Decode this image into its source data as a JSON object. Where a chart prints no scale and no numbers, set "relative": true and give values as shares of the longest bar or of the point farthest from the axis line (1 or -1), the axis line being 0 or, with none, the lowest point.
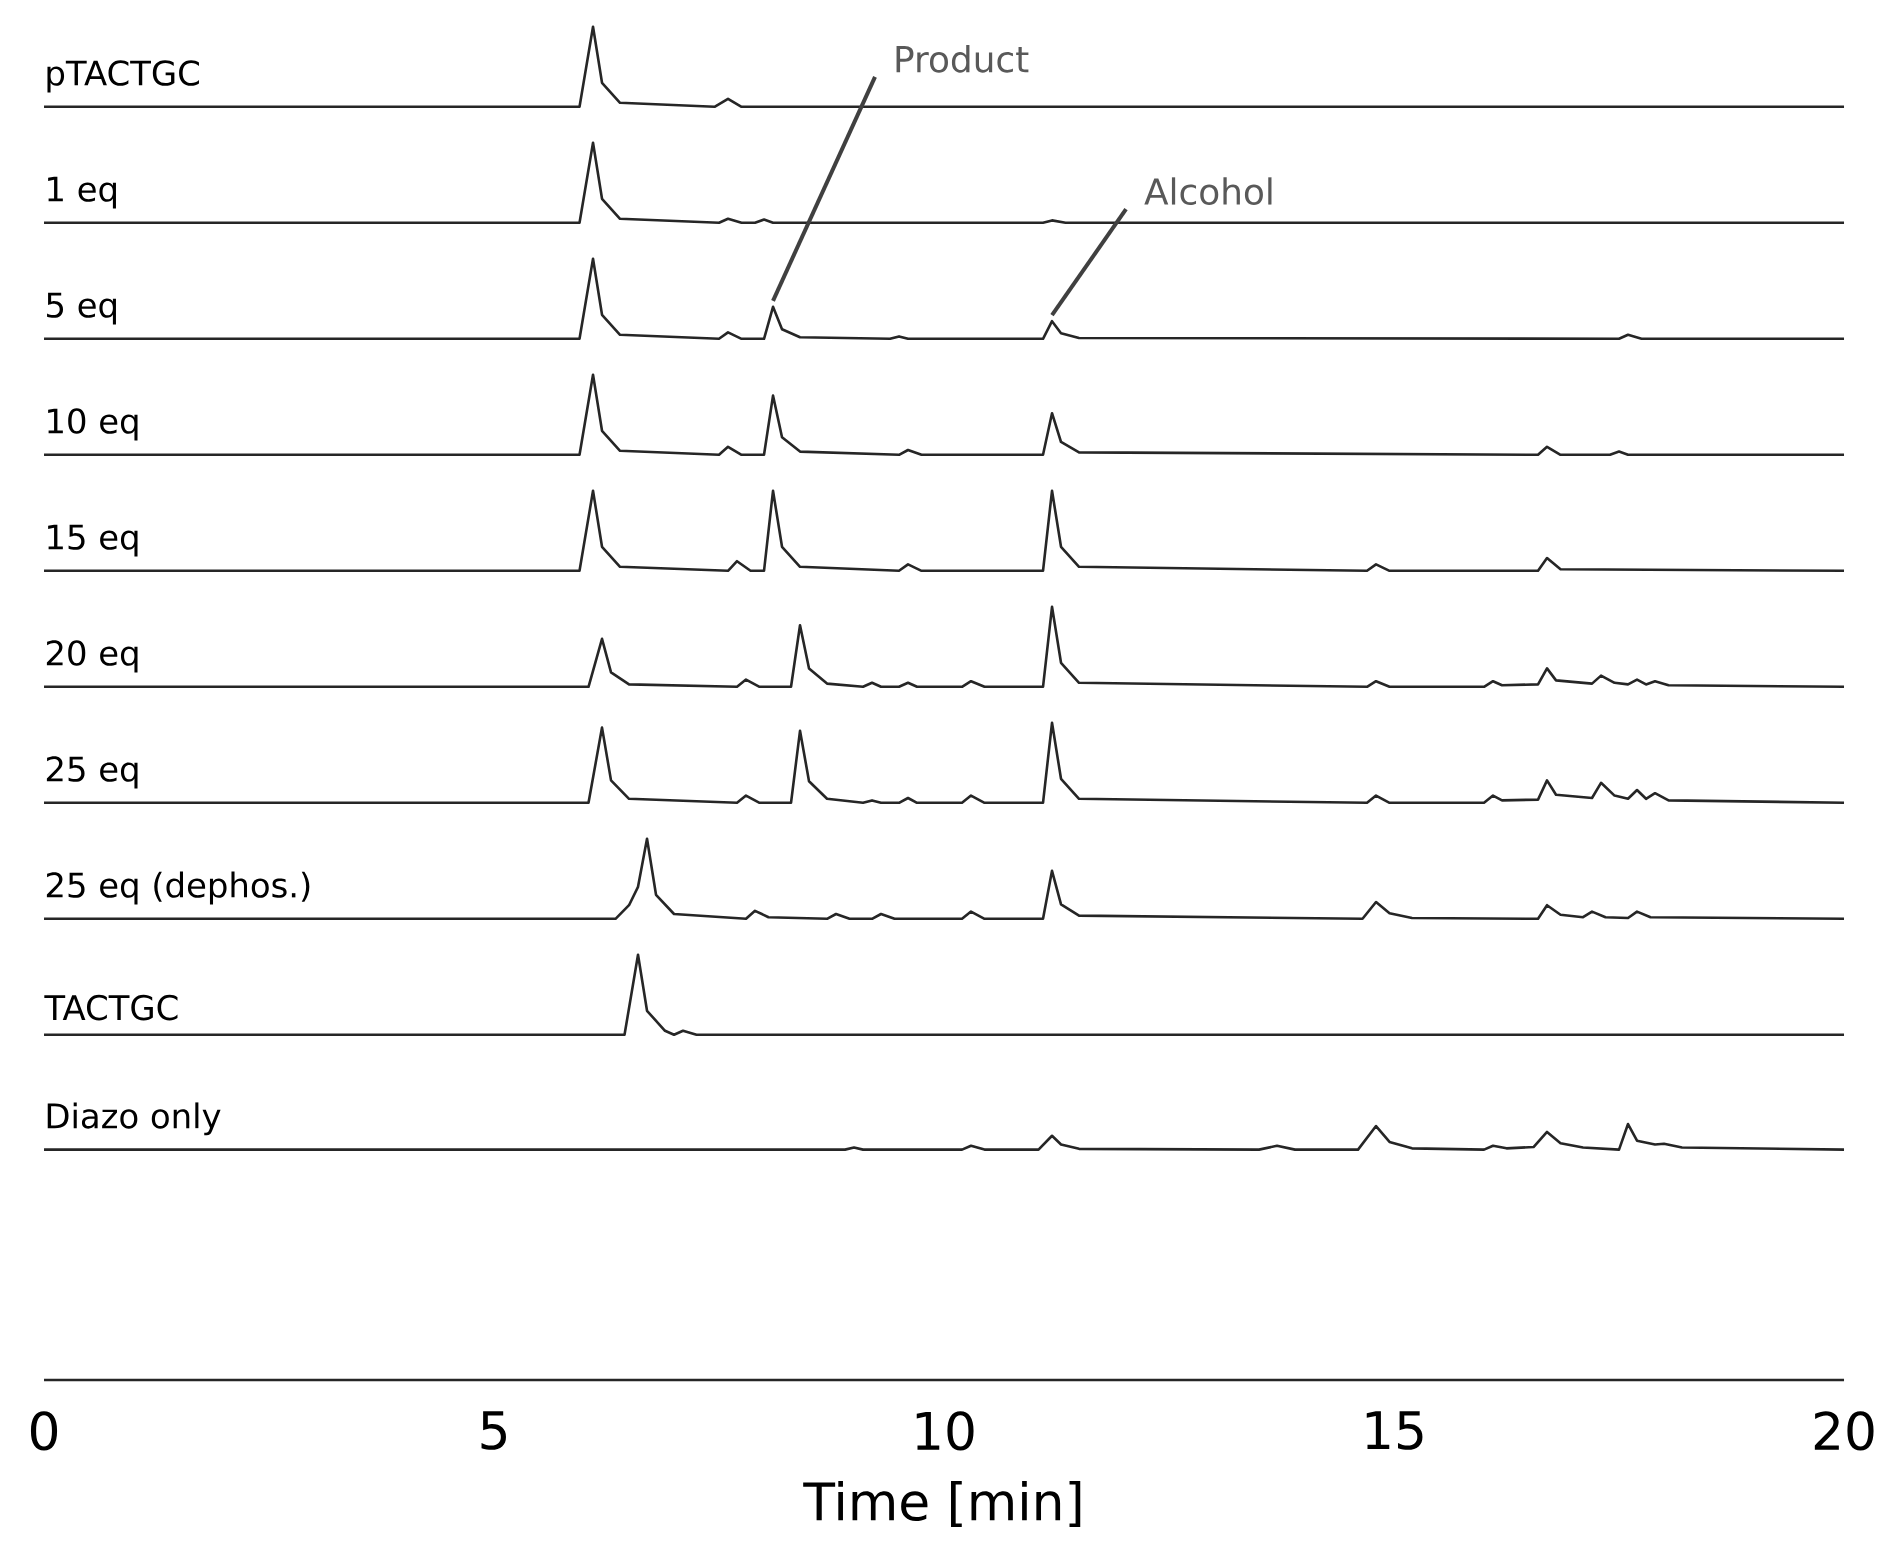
{
  "chart_data": [
    {
      "type": "line",
      "title": "pTACTGC",
      "relative": true,
      "color": "#262626",
      "xlim": [
        0,
        20
      ],
      "tick_labels": false,
      "x": [
        0,
        5.95,
        6.1,
        6.2,
        6.4,
        7.45,
        7.6,
        7.75,
        20
      ],
      "values": [
        0,
        0,
        1,
        0.3,
        0.05,
        0,
        0.1,
        0,
        0
      ]
    },
    {
      "type": "line",
      "title": "1 eq",
      "relative": true,
      "color": "#262626",
      "xlim": [
        0,
        20
      ],
      "tick_labels": false,
      "x": [
        0,
        5.95,
        6.1,
        6.2,
        6.4,
        7.5,
        7.6,
        7.75,
        7.9,
        8.0,
        8.1,
        11.1,
        11.2,
        11.35,
        20
      ],
      "values": [
        0,
        0,
        1,
        0.3,
        0.05,
        0,
        0.05,
        0,
        0,
        0.04,
        0,
        0,
        0.03,
        0,
        0
      ]
    },
    {
      "type": "line",
      "title": "5 eq",
      "relative": true,
      "color": "#262626",
      "xlim": [
        0,
        20
      ],
      "tick_labels": false,
      "annotations": [
        {
          "text": "Product",
          "x": 8.1,
          "y": 0.4
        },
        {
          "text": "Alcohol",
          "x": 11.2,
          "y": 0.22
        }
      ],
      "x": [
        0,
        5.95,
        6.1,
        6.2,
        6.4,
        7.5,
        7.6,
        7.75,
        8.0,
        8.1,
        8.2,
        8.4,
        9.4,
        9.5,
        9.6,
        11.1,
        11.2,
        11.3,
        11.5,
        17.5,
        17.6,
        17.75,
        20
      ],
      "values": [
        0,
        0,
        1,
        0.3,
        0.05,
        0,
        0.08,
        0,
        0,
        0.4,
        0.12,
        0.02,
        0,
        0.03,
        0,
        0,
        0.22,
        0.07,
        0.01,
        0,
        0.05,
        0,
        0
      ]
    },
    {
      "type": "line",
      "title": "10 eq",
      "relative": true,
      "color": "#262626",
      "xlim": [
        0,
        20
      ],
      "tick_labels": false,
      "x": [
        0,
        5.95,
        6.1,
        6.2,
        6.4,
        7.5,
        7.6,
        7.75,
        8.0,
        8.1,
        8.2,
        8.4,
        9.5,
        9.6,
        9.75,
        11.1,
        11.2,
        11.3,
        11.5,
        16.6,
        16.7,
        16.85,
        17.4,
        17.5,
        17.6,
        20
      ],
      "values": [
        0,
        0,
        1,
        0.3,
        0.05,
        0,
        0.1,
        0,
        0,
        0.74,
        0.22,
        0.04,
        0,
        0.06,
        0,
        0,
        0.52,
        0.16,
        0.03,
        0,
        0.1,
        0,
        0,
        0.04,
        0,
        0
      ]
    },
    {
      "type": "line",
      "title": "15 eq",
      "relative": true,
      "color": "#262626",
      "xlim": [
        0,
        20
      ],
      "tick_labels": false,
      "x": [
        0,
        5.95,
        6.1,
        6.2,
        6.4,
        7.6,
        7.7,
        7.85,
        8.0,
        8.1,
        8.2,
        8.4,
        9.5,
        9.6,
        9.75,
        11.1,
        11.2,
        11.3,
        11.5,
        14.7,
        14.8,
        14.95,
        16.6,
        16.7,
        16.85,
        20
      ],
      "values": [
        0,
        0,
        1,
        0.3,
        0.05,
        0,
        0.12,
        0,
        0,
        1,
        0.3,
        0.05,
        0,
        0.08,
        0,
        0,
        1,
        0.3,
        0.05,
        0,
        0.08,
        0,
        0,
        0.16,
        0.02,
        0
      ]
    },
    {
      "type": "line",
      "title": "20 eq",
      "relative": true,
      "color": "#262626",
      "xlim": [
        0,
        20
      ],
      "tick_labels": false,
      "x": [
        0,
        6.05,
        6.2,
        6.3,
        6.5,
        7.7,
        7.8,
        7.95,
        8.3,
        8.4,
        8.5,
        8.7,
        9.1,
        9.2,
        9.3,
        9.5,
        9.6,
        9.7,
        10.2,
        10.3,
        10.45,
        11.1,
        11.2,
        11.3,
        11.5,
        14.7,
        14.8,
        14.95,
        16.0,
        16.1,
        16.2,
        16.6,
        16.7,
        16.8,
        17.2,
        17.3,
        17.45,
        17.6,
        17.7,
        17.8,
        17.9,
        18.05,
        20
      ],
      "values": [
        0,
        0,
        0.6,
        0.18,
        0.03,
        0,
        0.09,
        0,
        0,
        0.77,
        0.23,
        0.04,
        0,
        0.05,
        0,
        0,
        0.05,
        0,
        0,
        0.07,
        0,
        0,
        1,
        0.3,
        0.05,
        0,
        0.07,
        0,
        0,
        0.07,
        0.02,
        0.03,
        0.23,
        0.08,
        0.04,
        0.14,
        0.05,
        0.03,
        0.09,
        0.03,
        0.07,
        0.02,
        0
      ]
    },
    {
      "type": "line",
      "title": "25 eq",
      "relative": true,
      "color": "#262626",
      "xlim": [
        0,
        20
      ],
      "tick_labels": false,
      "x": [
        0,
        6.05,
        6.2,
        6.3,
        6.5,
        7.7,
        7.8,
        7.95,
        8.3,
        8.4,
        8.5,
        8.7,
        9.1,
        9.2,
        9.3,
        9.5,
        9.6,
        9.7,
        10.2,
        10.3,
        10.45,
        11.1,
        11.2,
        11.3,
        11.5,
        14.7,
        14.8,
        14.95,
        16.0,
        16.1,
        16.2,
        16.6,
        16.7,
        16.8,
        17.2,
        17.3,
        17.45,
        17.6,
        17.7,
        17.8,
        17.9,
        18.05,
        20
      ],
      "values": [
        0,
        0,
        0.94,
        0.28,
        0.05,
        0,
        0.09,
        0,
        0,
        0.9,
        0.27,
        0.05,
        0,
        0.03,
        0,
        0,
        0.06,
        0,
        0,
        0.09,
        0,
        0,
        1,
        0.3,
        0.05,
        0,
        0.09,
        0,
        0,
        0.09,
        0.03,
        0.04,
        0.28,
        0.1,
        0.06,
        0.25,
        0.09,
        0.05,
        0.16,
        0.05,
        0.12,
        0.03,
        0
      ]
    },
    {
      "type": "line",
      "title": "25 eq (dephos.)",
      "relative": true,
      "color": "#262626",
      "xlim": [
        0,
        20
      ],
      "tick_labels": false,
      "x": [
        0,
        6.35,
        6.5,
        6.6,
        6.7,
        6.8,
        7.0,
        7.8,
        7.9,
        8.05,
        8.7,
        8.8,
        8.95,
        9.2,
        9.3,
        9.45,
        10.2,
        10.3,
        10.45,
        11.1,
        11.2,
        11.3,
        11.5,
        14.65,
        14.8,
        14.95,
        15.2,
        16.6,
        16.7,
        16.85,
        17.1,
        17.2,
        17.35,
        17.6,
        17.7,
        17.85,
        20
      ],
      "values": [
        0,
        0,
        0.17,
        0.4,
        1,
        0.3,
        0.06,
        0,
        0.1,
        0.02,
        0,
        0.06,
        0,
        0,
        0.06,
        0,
        0,
        0.09,
        0,
        0,
        0.6,
        0.18,
        0.04,
        0,
        0.21,
        0.07,
        0.01,
        0,
        0.17,
        0.05,
        0.02,
        0.09,
        0.02,
        0.01,
        0.09,
        0.02,
        0
      ]
    },
    {
      "type": "line",
      "title": "TACTGC",
      "relative": true,
      "color": "#262626",
      "xlim": [
        0,
        20
      ],
      "tick_labels": false,
      "x": [
        0,
        6.45,
        6.6,
        6.7,
        6.9,
        7.0,
        7.1,
        7.25,
        20
      ],
      "values": [
        0,
        0,
        1,
        0.3,
        0.05,
        0,
        0.05,
        0,
        0
      ]
    },
    {
      "type": "line",
      "title": "Diazo only",
      "relative": true,
      "color": "#262626",
      "xlim": [
        0,
        20
      ],
      "xticks": [
        0,
        5,
        10,
        15,
        20
      ],
      "xlabel": "Time [min]",
      "tick_labels": "x",
      "x": [
        0,
        8.9,
        9.0,
        9.1,
        10.2,
        10.3,
        10.45,
        11.05,
        11.2,
        11.3,
        11.5,
        13.5,
        13.7,
        13.9,
        14.6,
        14.8,
        14.95,
        15.2,
        16.0,
        16.1,
        16.25,
        16.55,
        16.7,
        16.85,
        17.1,
        17.5,
        17.6,
        17.7,
        17.9,
        18.0,
        18.2,
        20
      ],
      "values": [
        0.9,
        0.9,
        0.908,
        0.9,
        0.9,
        0.915,
        0.9,
        0.9,
        0.954,
        0.92,
        0.903,
        0.9,
        0.915,
        0.9,
        0.9,
        0.992,
        0.93,
        0.905,
        0.9,
        0.915,
        0.905,
        0.91,
        0.969,
        0.925,
        0.908,
        0.9,
        1,
        0.935,
        0.92,
        0.923,
        0.908,
        0.9
      ]
    }
  ]
}
